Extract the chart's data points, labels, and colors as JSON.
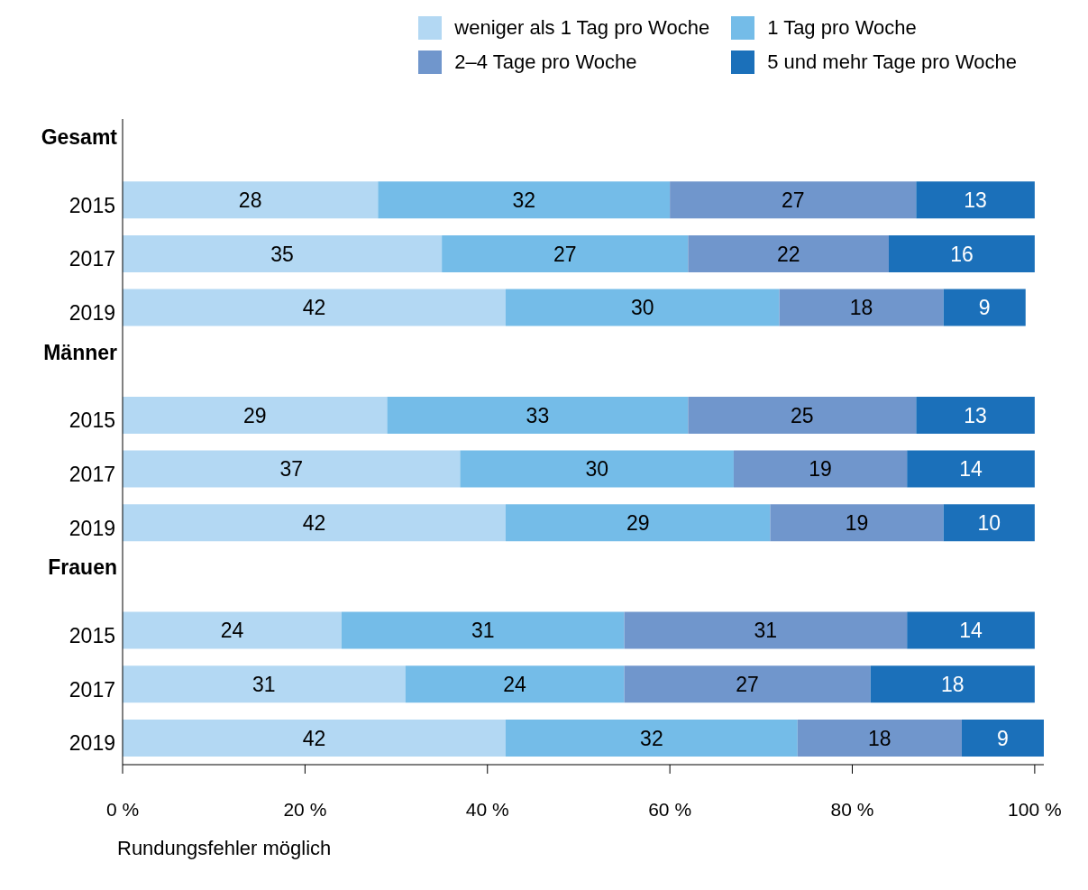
{
  "chart_data": {
    "type": "bar",
    "orientation": "horizontal",
    "stacked": true,
    "data_labels": true,
    "grid": false,
    "legend": "top right",
    "categories": [
      "Gesamt",
      "2015",
      "2017",
      "2019",
      "Männer",
      "2015",
      "2017",
      "2019",
      "Frauen",
      "2015",
      "2017",
      "2019"
    ],
    "series": [
      {
        "name": "weniger als 1 Tag pro Woche",
        "color": "#b3d8f3",
        "values": [
          null,
          28,
          35,
          42,
          null,
          29,
          37,
          42,
          null,
          24,
          31,
          42
        ]
      },
      {
        "name": "1 Tag pro Woche",
        "color": "#74bce8",
        "values": [
          null,
          32,
          27,
          30,
          null,
          33,
          30,
          29,
          null,
          31,
          24,
          32
        ]
      },
      {
        "name": "2–4 Tage pro Woche",
        "color": "#7096cc",
        "values": [
          null,
          27,
          22,
          18,
          null,
          25,
          19,
          19,
          null,
          31,
          27,
          18
        ]
      },
      {
        "name": "5 und mehr Tage pro Woche",
        "color": "#1b70ba",
        "values": [
          null,
          13,
          16,
          9,
          null,
          13,
          14,
          10,
          null,
          14,
          18,
          9
        ]
      }
    ],
    "xlim": [
      0,
      101
    ],
    "xticks": [
      {
        "value": 0,
        "label": "0 %"
      },
      {
        "value": 20,
        "label": "20 %"
      },
      {
        "value": 40,
        "label": "40 %"
      },
      {
        "value": 60,
        "label": "60 %"
      },
      {
        "value": 80,
        "label": "80 %"
      },
      {
        "value": 100,
        "label": "100 %"
      }
    ],
    "annotations": [
      "Rundungsfehler möglich"
    ]
  }
}
